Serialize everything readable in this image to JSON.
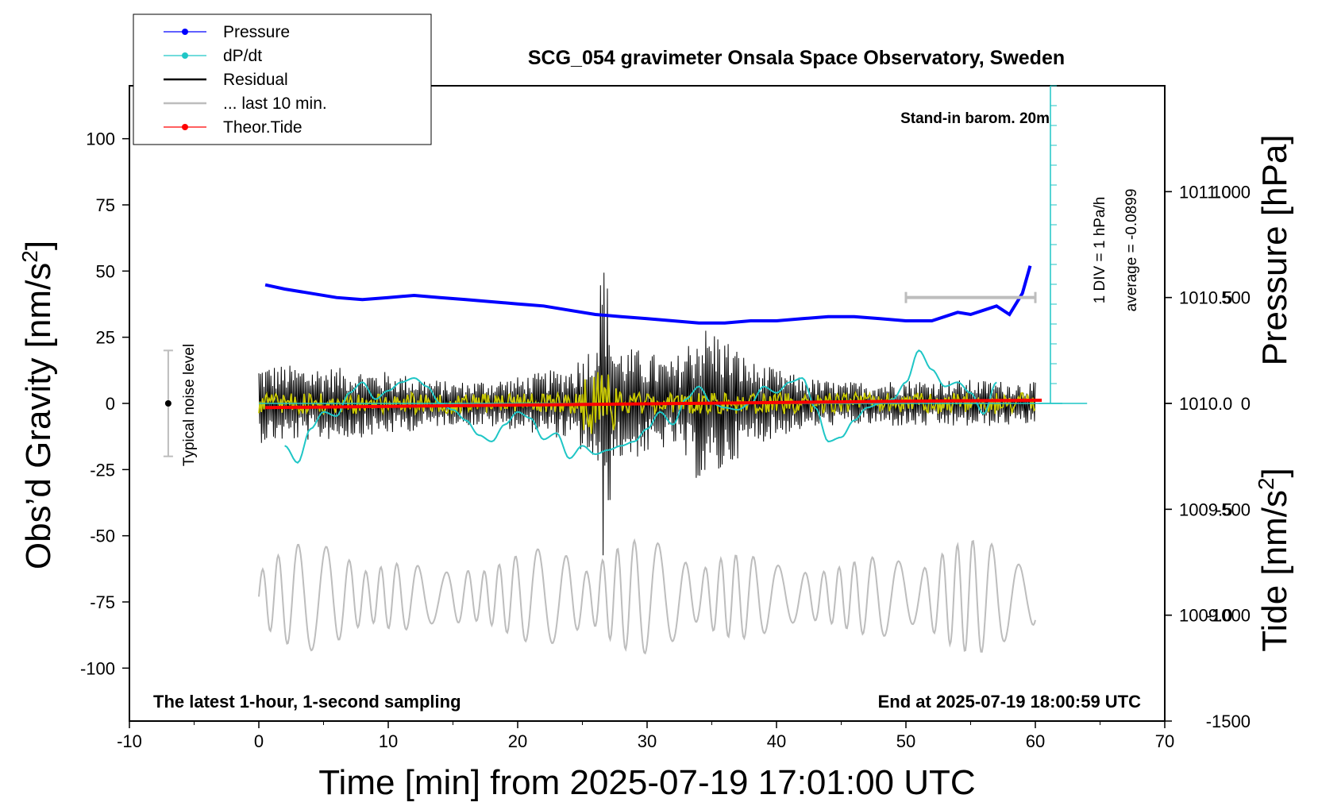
{
  "chart_data": {
    "type": "line",
    "title": "SCG_054 gravimeter Onsala Space Observatory, Sweden",
    "xlabel": "Time [min] from 2025-07-19 17:01:00 UTC",
    "ylabel_left": "Obs’d Gravity [nm/s²]",
    "ylabel_left_base": "Obs’d Gravity [nm/s",
    "ylabel_right_pressure": "Pressure [hPa]",
    "ylabel_right_tide_base": "Tide [nm/s",
    "superscript": "2",
    "closing_bracket": "]",
    "xlim": [
      -10,
      70
    ],
    "ylim_left": [
      -120,
      120
    ],
    "ylim_pressure": [
      1008.5,
      1011.5
    ],
    "ylim_tide": [
      -1500,
      1500
    ],
    "x_ticks": [
      -10,
      0,
      10,
      20,
      30,
      40,
      50,
      60,
      70
    ],
    "y_ticks_left": [
      100,
      75,
      50,
      25,
      0,
      -25,
      -50,
      -75,
      -100
    ],
    "y_ticks_pressure": [
      "1011.0",
      "1010.5",
      "1010.0",
      "1009.5",
      "1009.0"
    ],
    "y_ticks_tide": [
      1000,
      500,
      0,
      -500,
      -1000,
      -1500
    ],
    "legend": {
      "position": "top-left",
      "entries": [
        {
          "label": "Pressure",
          "color": "#0000ff",
          "marker": true
        },
        {
          "label": "dP/dt",
          "color": "#1fc6c6",
          "marker": true
        },
        {
          "label": "Residual",
          "color": "#000000",
          "marker": false
        },
        {
          "label": "... last 10 min.",
          "color": "#bdbdbd",
          "marker": false
        },
        {
          "label": "Theor.Tide",
          "color": "#ff0000",
          "marker": true
        }
      ]
    },
    "annotations": {
      "barometer": "Stand-in barom. 20m",
      "dpdt_scale": "1 DIV = 1 hPa/h",
      "dpdt_average": "average = -0.0899",
      "noise_label": "Typical noise level",
      "bottom_left": "The latest 1-hour, 1-second sampling",
      "bottom_right": "End at 2025-07-19 18:00:59 UTC"
    },
    "series": [
      {
        "name": "Pressure",
        "axis": "pressure_hPa",
        "color": "#0000ff",
        "x": [
          0.5,
          2,
          4,
          6,
          8,
          10,
          12,
          14,
          16,
          18,
          20,
          22,
          24,
          26,
          28,
          30,
          32,
          34,
          36,
          38,
          40,
          42,
          44,
          46,
          48,
          50,
          52,
          53,
          54,
          55,
          56,
          57,
          58,
          59,
          59.6
        ],
        "values": [
          1010.56,
          1010.54,
          1010.52,
          1010.5,
          1010.49,
          1010.5,
          1010.51,
          1010.5,
          1010.49,
          1010.48,
          1010.47,
          1010.46,
          1010.44,
          1010.42,
          1010.41,
          1010.4,
          1010.39,
          1010.38,
          1010.38,
          1010.39,
          1010.39,
          1010.4,
          1010.41,
          1010.41,
          1010.4,
          1010.39,
          1010.39,
          1010.41,
          1010.43,
          1010.42,
          1010.44,
          1010.46,
          1010.42,
          1010.52,
          1010.65
        ]
      },
      {
        "name": "dP/dt",
        "axis": "pressure_hPa",
        "color": "#1fc6c6",
        "zero_level_hPa": 1010.0,
        "x": [
          2,
          3,
          4,
          5,
          6,
          7,
          8,
          9,
          10,
          11,
          12,
          13,
          14,
          15,
          16,
          17,
          18,
          19,
          20,
          21,
          22,
          23,
          24,
          25,
          26,
          27,
          28,
          29,
          30,
          31,
          32,
          33,
          34,
          35,
          36,
          37,
          38,
          39,
          40,
          41,
          42,
          43,
          44,
          45,
          46,
          47,
          48,
          49,
          50,
          51,
          52,
          53,
          54,
          55,
          56,
          57
        ],
        "values": [
          1009.8,
          1009.72,
          1009.88,
          1009.96,
          1009.94,
          1010.05,
          1010.1,
          1010.02,
          1010.06,
          1010.1,
          1010.12,
          1010.08,
          1010.0,
          1009.97,
          1009.92,
          1009.85,
          1009.82,
          1009.9,
          1009.96,
          1009.93,
          1009.83,
          1009.86,
          1009.74,
          1009.8,
          1009.76,
          1009.78,
          1009.8,
          1009.82,
          1009.88,
          1009.96,
          1009.9,
          1010.02,
          1010.08,
          1010.0,
          1009.98,
          1009.97,
          1010.0,
          1010.08,
          1010.05,
          1010.1,
          1010.12,
          1009.98,
          1009.82,
          1009.84,
          1009.92,
          1009.98,
          1010.0,
          1010.02,
          1010.1,
          1010.25,
          1010.16,
          1010.08,
          1010.1,
          1010.05,
          1009.95,
          1010.1
        ]
      },
      {
        "name": "Residual",
        "axis": "gravity_nm_s2",
        "color": "#000000",
        "x_start": 0,
        "x_end": 60,
        "amplitude_envelope_x": [
          0,
          5,
          10,
          15,
          20,
          24,
          26,
          26.6,
          27.5,
          30,
          32,
          34,
          35.5,
          38,
          42,
          45,
          50,
          55,
          60
        ],
        "amplitude_envelope": [
          15,
          14,
          12,
          8,
          10,
          14,
          24,
          60,
          22,
          20,
          16,
          30,
          28,
          16,
          10,
          8,
          9,
          9,
          8
        ]
      },
      {
        "name": "Residual (filtered)",
        "axis": "gravity_nm_s2",
        "color": "#c8c800",
        "x_start": 0,
        "x_end": 60,
        "typical_amplitude": 4
      },
      {
        "name": "... last 10 min.",
        "axis": "gravity_nm_s2",
        "color": "#bdbdbd",
        "x_start": 0,
        "x_end": 60,
        "baseline": -73,
        "typical_amplitude": 9
      },
      {
        "name": "Theor.Tide",
        "axis": "tide_nm_s2",
        "color": "#ff0000",
        "x": [
          0.5,
          10,
          20,
          30,
          40,
          50,
          60.5
        ],
        "values": [
          -20,
          -14,
          -8,
          -2,
          4,
          10,
          15
        ]
      }
    ],
    "noise_level": {
      "x": -7,
      "center": 0,
      "half_range": 20
    },
    "last10_bar": {
      "x_from": 50,
      "x_to": 60,
      "tide_level": 500
    }
  }
}
